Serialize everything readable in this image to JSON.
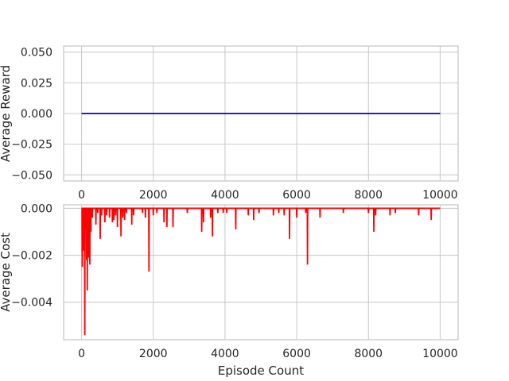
{
  "colors": {
    "reward_line": "#0000cc",
    "cost_line": "#ff0000",
    "grid": "#cccccc"
  },
  "chart_data": [
    {
      "type": "line",
      "title": "",
      "xlabel": "",
      "ylabel": "Average Reward",
      "xlim": [
        -500,
        10500
      ],
      "ylim": [
        -0.055,
        0.055
      ],
      "grid": true,
      "xticks": [
        0,
        2000,
        4000,
        6000,
        8000,
        10000
      ],
      "xtick_labels": [
        "0",
        "2000",
        "4000",
        "6000",
        "8000",
        "10000"
      ],
      "yticks": [
        0.05,
        0.025,
        0.0,
        -0.025,
        -0.05
      ],
      "ytick_labels": [
        "0.050",
        "0.025",
        "0.000",
        "−0.025",
        "−0.050"
      ],
      "series": [
        {
          "color": "#0000cc",
          "x": [
            0,
            10000
          ],
          "values": [
            0.0,
            0.0
          ]
        }
      ]
    },
    {
      "type": "line",
      "title": "",
      "xlabel": "Episode Count",
      "ylabel": "Average Cost",
      "xlim": [
        -500,
        10500
      ],
      "ylim": [
        -0.0056,
        0.00015
      ],
      "grid": true,
      "xticks": [
        0,
        2000,
        4000,
        6000,
        8000,
        10000
      ],
      "xtick_labels": [
        "0",
        "2000",
        "4000",
        "6000",
        "8000",
        "10000"
      ],
      "yticks": [
        0.0,
        -0.002,
        -0.004
      ],
      "ytick_labels": [
        "0.000",
        "−0.002",
        "−0.004"
      ],
      "series": [
        {
          "color": "#ff0000",
          "baseline": 0.0,
          "x_range": [
            0,
            10000
          ],
          "spikes": [
            [
              20,
              -0.0025
            ],
            [
              50,
              -0.0018
            ],
            [
              70,
              -0.0009
            ],
            [
              90,
              -0.0054
            ],
            [
              110,
              -0.0009
            ],
            [
              140,
              -0.0022
            ],
            [
              160,
              -0.0035
            ],
            [
              180,
              -0.001
            ],
            [
              200,
              -0.0021
            ],
            [
              230,
              -0.0024
            ],
            [
              260,
              -0.001
            ],
            [
              300,
              -0.0004
            ],
            [
              400,
              -0.0007
            ],
            [
              450,
              -0.0002
            ],
            [
              520,
              -0.0013
            ],
            [
              560,
              -0.0003
            ],
            [
              650,
              -0.0006
            ],
            [
              700,
              -0.0003
            ],
            [
              780,
              -0.0004
            ],
            [
              860,
              -0.0006
            ],
            [
              900,
              -0.0005
            ],
            [
              950,
              -0.0003
            ],
            [
              1000,
              -0.0008
            ],
            [
              1100,
              -0.0012
            ],
            [
              1150,
              -0.0004
            ],
            [
              1200,
              -0.0005
            ],
            [
              1250,
              -0.0002
            ],
            [
              1400,
              -0.0007
            ],
            [
              1450,
              -0.0003
            ],
            [
              1700,
              -0.0002
            ],
            [
              1780,
              -0.0004
            ],
            [
              1880,
              -0.0027
            ],
            [
              2000,
              -0.0003
            ],
            [
              2100,
              -0.0002
            ],
            [
              2300,
              -0.0006
            ],
            [
              2380,
              -0.0008
            ],
            [
              2550,
              -0.0008
            ],
            [
              2950,
              -0.0002
            ],
            [
              3350,
              -0.001
            ],
            [
              3400,
              -0.0006
            ],
            [
              3600,
              -0.0004
            ],
            [
              3650,
              -0.0012
            ],
            [
              3800,
              -0.0002
            ],
            [
              3950,
              -0.0002
            ],
            [
              4050,
              -0.0002
            ],
            [
              4300,
              -0.0009
            ],
            [
              4650,
              -0.0003
            ],
            [
              4800,
              -0.0005
            ],
            [
              4950,
              -0.0002
            ],
            [
              5350,
              -0.0003
            ],
            [
              5500,
              -0.0002
            ],
            [
              5650,
              -0.0003
            ],
            [
              5800,
              -0.0013
            ],
            [
              6000,
              -0.0004
            ],
            [
              6250,
              -0.0002
            ],
            [
              6300,
              -0.0024
            ],
            [
              6650,
              -0.0004
            ],
            [
              7300,
              -0.0002
            ],
            [
              8000,
              -0.0002
            ],
            [
              8150,
              -0.001
            ],
            [
              8200,
              -0.0003
            ],
            [
              8600,
              -0.0003
            ],
            [
              8750,
              -0.0002
            ],
            [
              9400,
              -0.0003
            ],
            [
              9750,
              -0.0005
            ]
          ]
        }
      ]
    }
  ]
}
